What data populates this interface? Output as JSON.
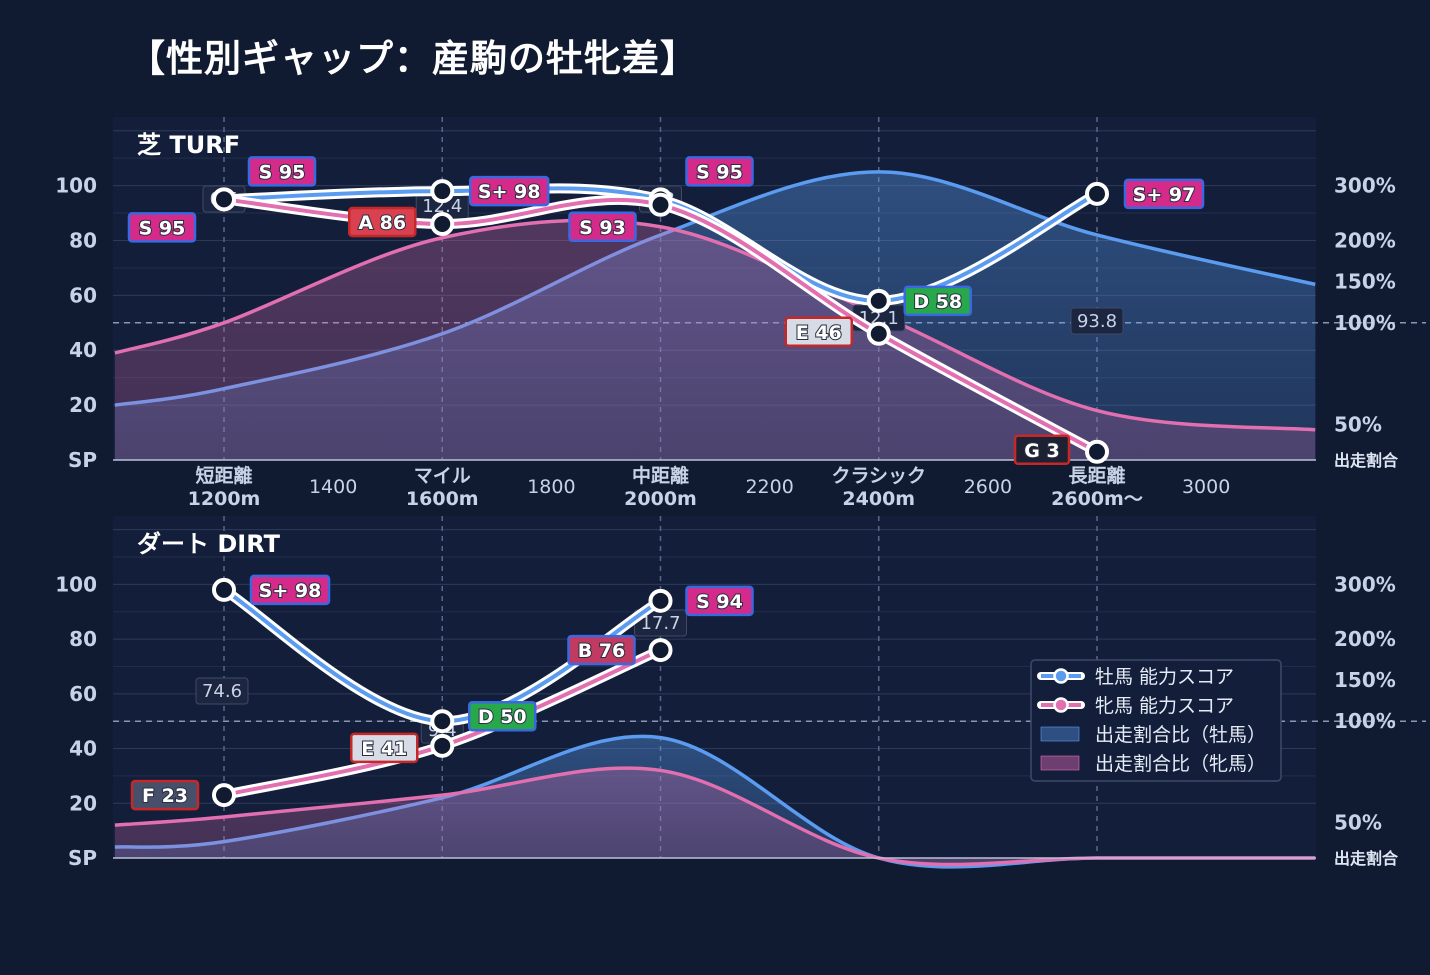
{
  "title": "【性別ギャップ：産駒の牡牝差】",
  "colors": {
    "male": "#5b9cf0",
    "female": "#e26fb0",
    "background": "#101a30",
    "panel": "#131f3a"
  },
  "chart_data": [
    {
      "panel": "芝 TURF",
      "type": "line",
      "x_category_labels": [
        {
          "x": 1200,
          "lines": [
            "短距離",
            "1200m"
          ]
        },
        {
          "x": 1600,
          "lines": [
            "マイル",
            "1600m"
          ]
        },
        {
          "x": 2000,
          "lines": [
            "中距離",
            "2000m"
          ]
        },
        {
          "x": 2400,
          "lines": [
            "クラシック",
            "2400m"
          ]
        },
        {
          "x": 2800,
          "lines": [
            "長距離",
            "2600m〜"
          ]
        }
      ],
      "x_minor_labels": [
        "1400",
        "1800",
        "2200",
        "2600",
        "3000"
      ],
      "x_range": [
        1000,
        3200
      ],
      "y_left": {
        "range": [
          0,
          120
        ],
        "ticks": [
          "SP",
          "20",
          "40",
          "60",
          "80",
          "100"
        ]
      },
      "y_right": {
        "ticks": [
          "出走割合",
          "50%",
          "100%",
          "150%",
          "200%",
          "300%"
        ]
      },
      "series": [
        {
          "name": "牡馬 能力スコア",
          "points": [
            [
              1200,
              95
            ],
            [
              1600,
              98
            ],
            [
              2000,
              95
            ],
            [
              2400,
              58
            ],
            [
              2800,
              97
            ]
          ],
          "grades": [
            "S 95",
            "S+ 98",
            "S 95",
            "D 58",
            "S+ 97"
          ]
        },
        {
          "name": "牝馬 能力スコア",
          "points": [
            [
              1200,
              95
            ],
            [
              1600,
              86
            ],
            [
              2000,
              93
            ],
            [
              2400,
              46
            ],
            [
              2800,
              3
            ]
          ],
          "grades": [
            "S 95",
            "A 86",
            "S 93",
            "E 46",
            "G 3"
          ]
        }
      ],
      "area_series": [
        {
          "name": "出走割合比（牡馬）",
          "x": [
            1000,
            1200,
            1600,
            2000,
            2400,
            2800,
            3200
          ],
          "y": [
            20,
            26,
            46,
            82,
            105,
            82,
            64
          ]
        },
        {
          "name": "出走割合比（牝馬）",
          "x": [
            1000,
            1200,
            1600,
            2000,
            2400,
            2800,
            3200
          ],
          "y": [
            39,
            50,
            81,
            85,
            53,
            18,
            11
          ]
        }
      ],
      "ratio_labels": [
        "0.5",
        "12.4",
        "0.8",
        "12.1",
        "93.8"
      ]
    },
    {
      "panel": "ダート DIRT",
      "type": "line",
      "x_range": [
        1000,
        3200
      ],
      "y_left": {
        "range": [
          0,
          120
        ],
        "ticks": [
          "SP",
          "20",
          "40",
          "60",
          "80",
          "100"
        ]
      },
      "y_right": {
        "ticks": [
          "出走割合",
          "50%",
          "100%",
          "150%",
          "200%",
          "300%"
        ]
      },
      "series": [
        {
          "name": "牡馬 能力スコア",
          "points": [
            [
              1200,
              98
            ],
            [
              1600,
              50
            ],
            [
              2000,
              94
            ]
          ],
          "grades": [
            "S+ 98",
            "D 50",
            "S 94"
          ]
        },
        {
          "name": "牝馬 能力スコア",
          "points": [
            [
              1200,
              23
            ],
            [
              1600,
              41
            ],
            [
              2000,
              76
            ]
          ],
          "grades": [
            "F 23",
            "E 41",
            "B 76"
          ]
        }
      ],
      "area_series": [
        {
          "name": "出走割合比（牡馬）",
          "x": [
            1000,
            1200,
            1600,
            2000,
            2400,
            2800,
            3200
          ],
          "y": [
            4,
            6,
            22,
            44,
            0,
            0,
            0
          ]
        },
        {
          "name": "出走割合比（牝馬）",
          "x": [
            1000,
            1200,
            1600,
            2000,
            2400,
            2800,
            3200
          ],
          "y": [
            12,
            15,
            23,
            32,
            0,
            0,
            0
          ]
        }
      ],
      "ratio_labels": [
        "74.6",
        "9.4",
        "17.7"
      ]
    }
  ],
  "legend": {
    "items": [
      {
        "label": "牡馬 能力スコア",
        "kind": "line-male"
      },
      {
        "label": "牝馬 能力スコア",
        "kind": "line-female"
      },
      {
        "label": "出走割合比（牡馬）",
        "kind": "area-male"
      },
      {
        "label": "出走割合比（牝馬）",
        "kind": "area-female"
      }
    ]
  }
}
